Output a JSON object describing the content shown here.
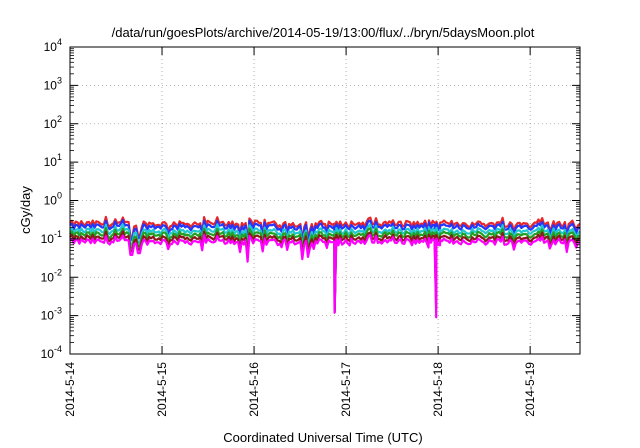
{
  "chart_data": {
    "type": "line",
    "title": "/data/run/goesPlots/archive/2014-05-19/13:00/flux/../bryn/5daysMoon.plot",
    "xlabel": "Coordinated Universal Time (UTC)",
    "ylabel": "cGy/day",
    "y_scale": "log",
    "ylim": [
      0.0001,
      10000
    ],
    "y_ticks": [
      {
        "value": 0.0001,
        "base": "10",
        "exp": "-4"
      },
      {
        "value": 0.001,
        "base": "10",
        "exp": "-3"
      },
      {
        "value": 0.01,
        "base": "10",
        "exp": "-2"
      },
      {
        "value": 0.1,
        "base": "10",
        "exp": "-1"
      },
      {
        "value": 1,
        "base": "10",
        "exp": "0"
      },
      {
        "value": 10,
        "base": "10",
        "exp": "1"
      },
      {
        "value": 100,
        "base": "10",
        "exp": "2"
      },
      {
        "value": 1000,
        "base": "10",
        "exp": "3"
      },
      {
        "value": 10000,
        "base": "10",
        "exp": "4"
      }
    ],
    "xlim": [
      "2014-05-14T00:00",
      "2014-05-19T13:00"
    ],
    "x_ticks": [
      {
        "value": "2014-05-14T00:00",
        "label": "2014-5-14"
      },
      {
        "value": "2014-05-15T00:00",
        "label": "2014-5-15"
      },
      {
        "value": "2014-05-16T00:00",
        "label": "2014-5-16"
      },
      {
        "value": "2014-05-17T00:00",
        "label": "2014-5-17"
      },
      {
        "value": "2014-05-18T00:00",
        "label": "2014-5-18"
      },
      {
        "value": "2014-05-19T00:00",
        "label": "2014-5-19"
      }
    ],
    "grid": true,
    "legend": "none",
    "series": [
      {
        "color": "#e8262b",
        "baseline": 0.25,
        "dips": [
          {
            "x": "2014-05-16T21:00",
            "y": 0.0014
          },
          {
            "x": "2014-05-17T23:30",
            "y": 0.005
          }
        ]
      },
      {
        "color": "#2236ff",
        "baseline": 0.21,
        "dips": [
          {
            "x": "2014-05-16T21:00",
            "y": 0.0013
          },
          {
            "x": "2014-05-17T23:30",
            "y": 0.0045
          }
        ]
      },
      {
        "color": "#20c8d0",
        "baseline": 0.16,
        "dips": [
          {
            "x": "2014-05-16T21:00",
            "y": 0.0013
          },
          {
            "x": "2014-05-17T23:30",
            "y": 0.003
          }
        ]
      },
      {
        "color": "#22a022",
        "baseline": 0.13,
        "dips": [
          {
            "x": "2014-05-16T21:00",
            "y": 0.0013
          },
          {
            "x": "2014-05-17T23:30",
            "y": 0.0025
          }
        ]
      },
      {
        "color": "#8b1a1a",
        "baseline": 0.105,
        "dips": [
          {
            "x": "2014-05-16T21:00",
            "y": 0.0012
          },
          {
            "x": "2014-05-17T23:30",
            "y": 0.0015
          }
        ]
      },
      {
        "color": "#ff00ff",
        "baseline": 0.085,
        "dips": [
          {
            "x": "2014-05-16T21:00",
            "y": 0.0012
          },
          {
            "x": "2014-05-17T23:30",
            "y": 0.0009
          }
        ]
      }
    ]
  }
}
